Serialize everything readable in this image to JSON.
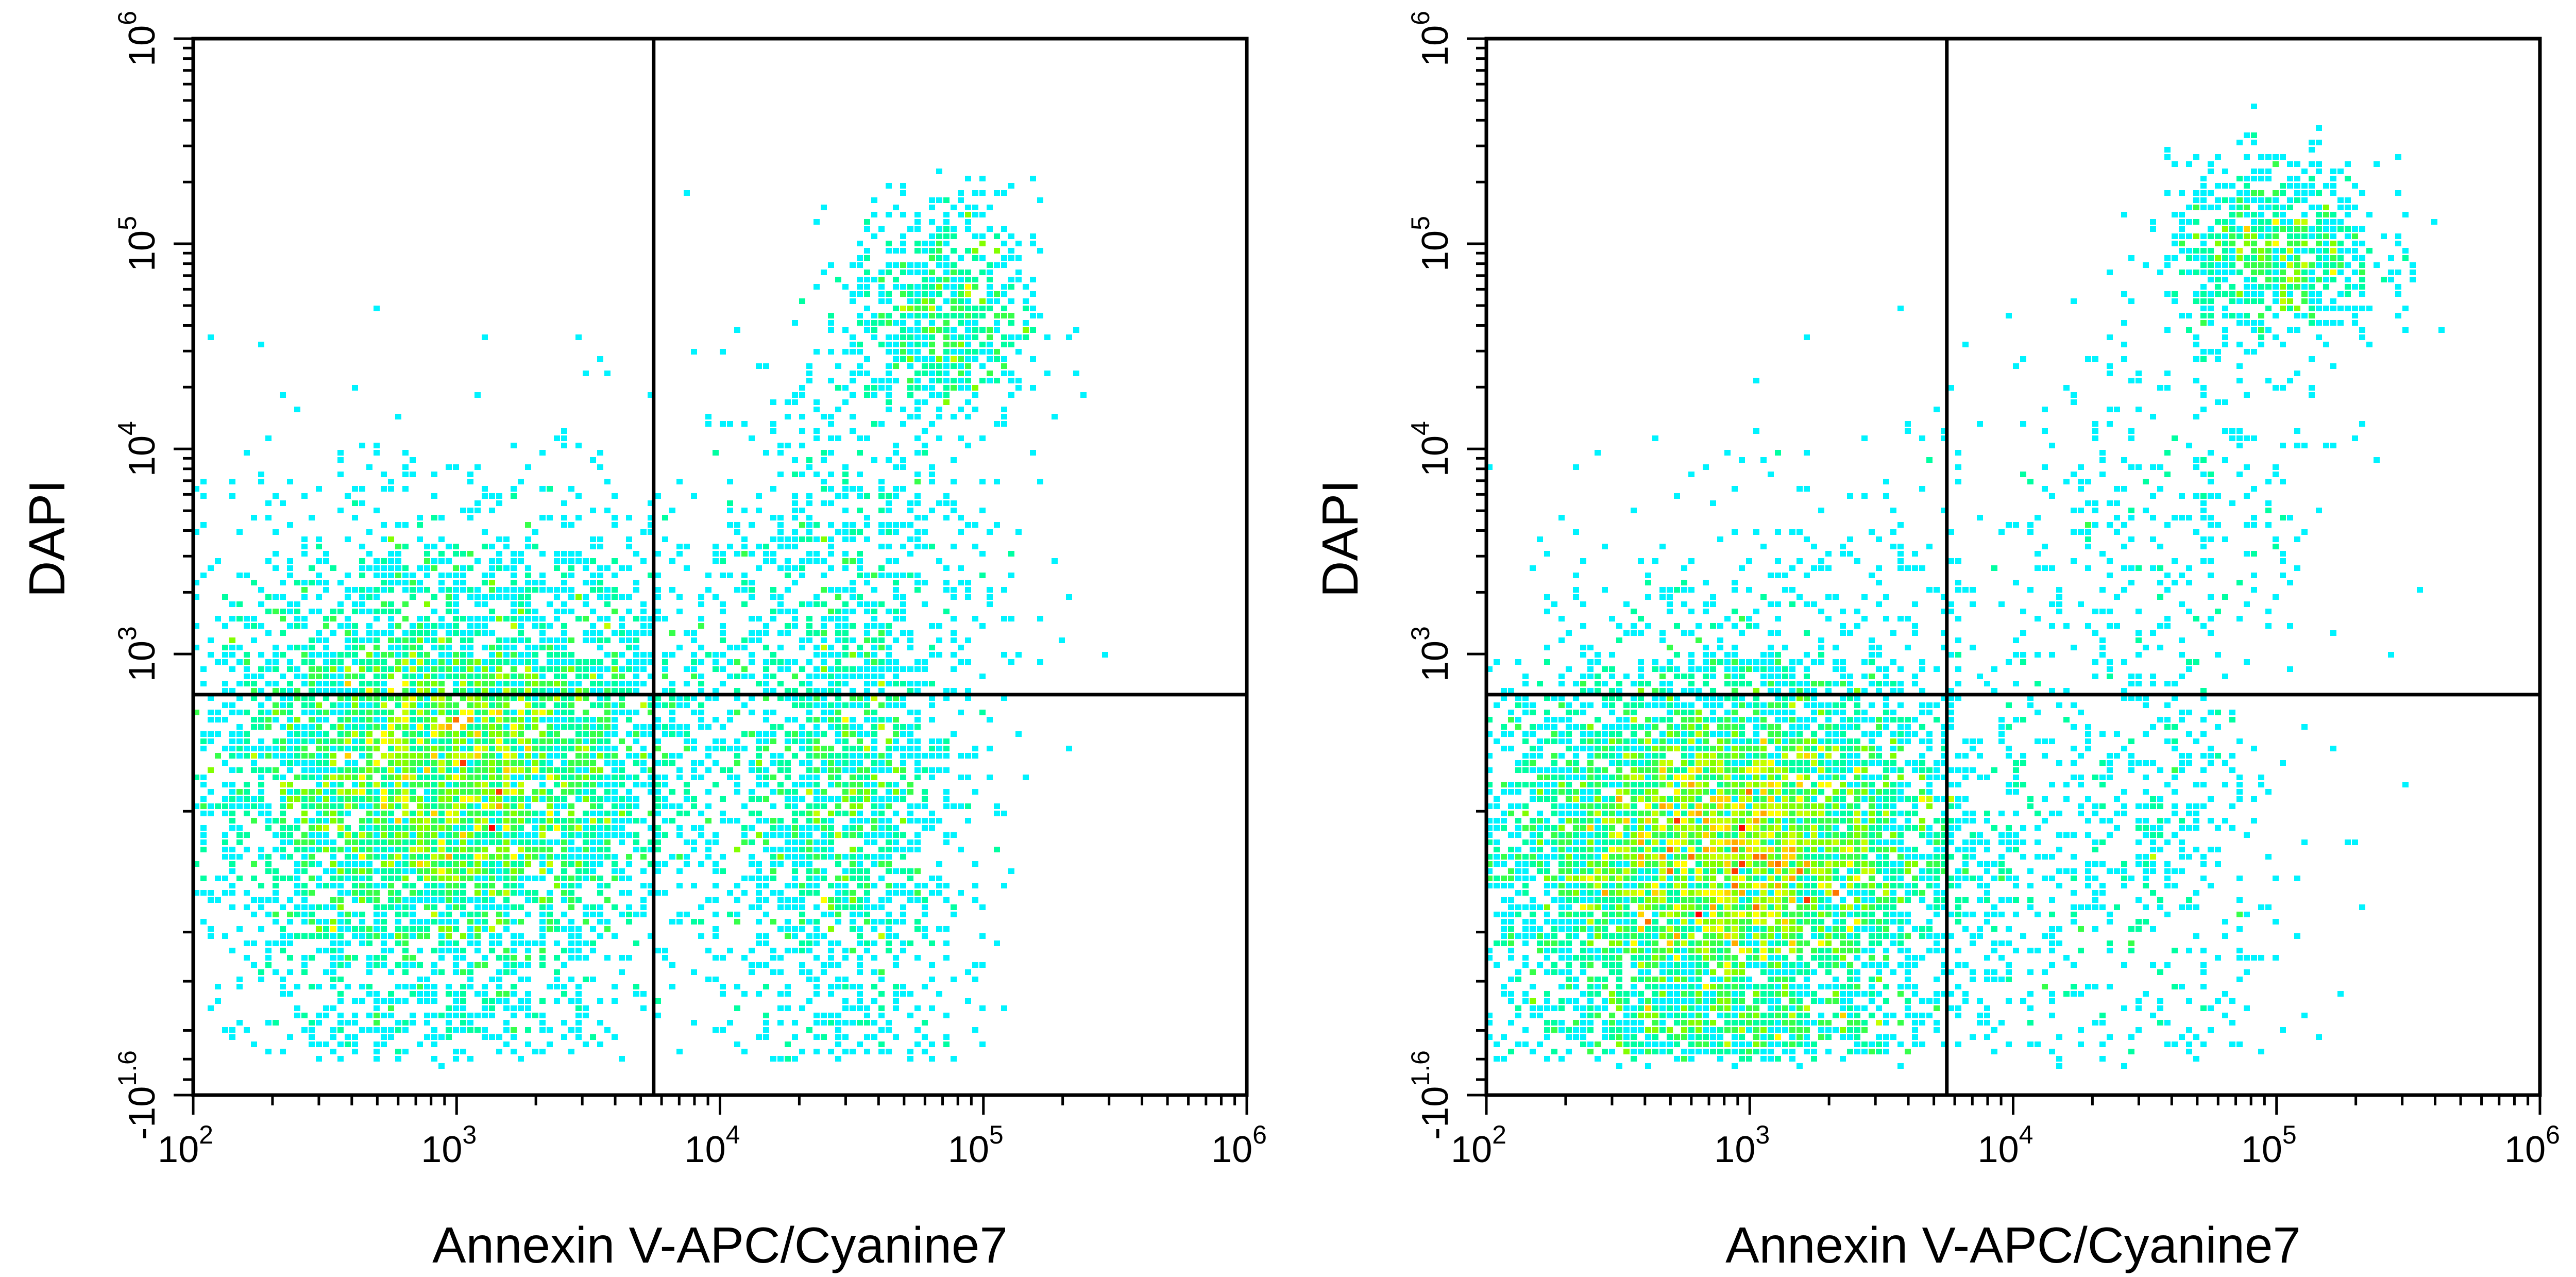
{
  "chart_data": [
    {
      "type": "scatter",
      "subtype": "flow-cytometry-density",
      "title": "",
      "xlabel": "Annexin V-APC/Cyanine7",
      "ylabel": "DAPI",
      "x_scale": "log",
      "y_scale": "log-biexponential",
      "xlim": [
        100,
        1000000
      ],
      "ylim": [
        -39.8,
        1000000
      ],
      "x_ticks": [
        {
          "value": 100,
          "base": "10",
          "exp": "2"
        },
        {
          "value": 1000,
          "base": "10",
          "exp": "3"
        },
        {
          "value": 10000,
          "base": "10",
          "exp": "4"
        },
        {
          "value": 100000,
          "base": "10",
          "exp": "5"
        },
        {
          "value": 1000000,
          "base": "10",
          "exp": "6"
        }
      ],
      "y_ticks": [
        {
          "value": -39.8,
          "base": "-10",
          "exp": "1.6"
        },
        {
          "value": 1000,
          "base": "10",
          "exp": "3"
        },
        {
          "value": 10000,
          "base": "10",
          "exp": "4"
        },
        {
          "value": 100000,
          "base": "10",
          "exp": "5"
        },
        {
          "value": 1000000,
          "base": "10",
          "exp": "6"
        }
      ],
      "quadrant_gate": {
        "x": 5600,
        "y": 560
      },
      "populations": [
        {
          "x_center": 900,
          "y_center": 150,
          "x_spread": 0.45,
          "y_spread": 0.55,
          "weight": 0.62
        },
        {
          "x_center": 30000,
          "y_center": 120,
          "x_spread": 0.22,
          "y_spread": 0.6,
          "weight": 0.17
        },
        {
          "x_center": 70000,
          "y_center": 45000,
          "x_spread": 0.18,
          "y_spread": 0.28,
          "weight": 0.08
        },
        {
          "x_center": 30000,
          "y_center": 3000,
          "x_spread": 0.3,
          "y_spread": 0.5,
          "weight": 0.05
        },
        {
          "x_center": 1500,
          "y_center": 900,
          "x_spread": 0.55,
          "y_spread": 0.35,
          "weight": 0.08
        }
      ],
      "color_scale": [
        "#0000ff",
        "#00a0ff",
        "#00ffff",
        "#00ff80",
        "#80ff00",
        "#ffff00",
        "#ffa000",
        "#ff0000"
      ]
    },
    {
      "type": "scatter",
      "subtype": "flow-cytometry-density",
      "title": "",
      "xlabel": "Annexin V-APC/Cyanine7",
      "ylabel": "DAPI",
      "x_scale": "log",
      "y_scale": "log-biexponential",
      "xlim": [
        100,
        1000000
      ],
      "ylim": [
        -39.8,
        1000000
      ],
      "x_ticks": [
        {
          "value": 100,
          "base": "10",
          "exp": "2"
        },
        {
          "value": 1000,
          "base": "10",
          "exp": "3"
        },
        {
          "value": 10000,
          "base": "10",
          "exp": "4"
        },
        {
          "value": 100000,
          "base": "10",
          "exp": "5"
        },
        {
          "value": 1000000,
          "base": "10",
          "exp": "6"
        }
      ],
      "y_ticks": [
        {
          "value": -39.8,
          "base": "-10",
          "exp": "1.6"
        },
        {
          "value": 1000,
          "base": "10",
          "exp": "3"
        },
        {
          "value": 10000,
          "base": "10",
          "exp": "4"
        },
        {
          "value": 100000,
          "base": "10",
          "exp": "5"
        },
        {
          "value": 1000000,
          "base": "10",
          "exp": "6"
        }
      ],
      "quadrant_gate": {
        "x": 5600,
        "y": 560
      },
      "populations": [
        {
          "x_center": 800,
          "y_center": 60,
          "x_spread": 0.45,
          "y_spread": 0.5,
          "weight": 0.8
        },
        {
          "x_center": 30000,
          "y_center": 80,
          "x_spread": 0.3,
          "y_spread": 0.6,
          "weight": 0.06
        },
        {
          "x_center": 100000,
          "y_center": 90000,
          "x_spread": 0.2,
          "y_spread": 0.22,
          "weight": 0.09
        },
        {
          "x_center": 40000,
          "y_center": 5000,
          "x_spread": 0.35,
          "y_spread": 0.5,
          "weight": 0.03
        },
        {
          "x_center": 3000,
          "y_center": 2000,
          "x_spread": 0.5,
          "y_spread": 0.5,
          "weight": 0.02
        }
      ],
      "color_scale": [
        "#0000ff",
        "#00a0ff",
        "#00ffff",
        "#00ff80",
        "#80ff00",
        "#ffff00",
        "#ffa000",
        "#ff0000"
      ]
    }
  ]
}
